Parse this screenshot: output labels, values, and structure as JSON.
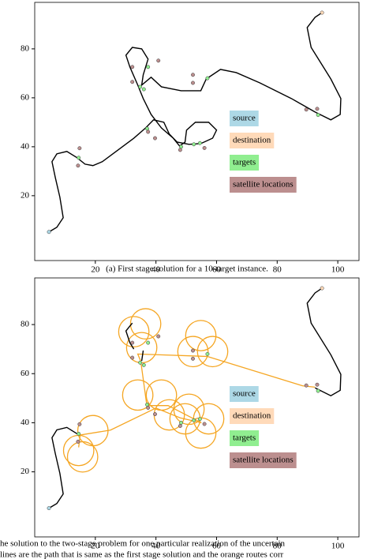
{
  "chart_data": [
    {
      "type": "route",
      "caption": "(a) First stage solution for a 10-target instance.",
      "xlim": [
        0,
        107
      ],
      "ylim": [
        -6.5,
        99
      ],
      "xticks": [
        20,
        40,
        60,
        80,
        100
      ],
      "yticks": [
        20,
        40,
        60,
        80
      ],
      "legend": "right",
      "path": {
        "color": "#000000",
        "x": [
          4.7,
          7.3,
          9.4,
          8.3,
          6.8,
          5.7,
          7.3,
          10.6,
          14.0,
          16.6,
          19.2,
          22.3,
          27.5,
          32.7,
          36.6,
          39.2,
          42.6,
          44.4,
          47.0,
          50.9,
          54.8,
          58.7,
          60.0,
          57.4,
          53.0,
          50.1,
          49.6,
          47.8,
          45.7,
          41.8,
          38.4,
          35.8,
          34.0,
          31.4,
          30.1,
          32.2,
          35.3,
          37.4,
          35.8,
          35.3,
          38.4,
          41.8,
          48.3,
          54.8,
          56.6,
          61.3,
          66.5,
          74.3,
          84.7,
          92.5,
          97.7,
          100.8,
          101.0,
          97.7,
          91.2,
          89.9,
          92.5,
          94.8
        ],
        "y": [
          5.2,
          7.1,
          11.0,
          19.4,
          27.4,
          33.9,
          37.1,
          38.1,
          35.5,
          32.9,
          32.3,
          33.9,
          38.7,
          43.5,
          47.7,
          51.0,
          50.0,
          45.2,
          41.9,
          41.0,
          41.3,
          43.5,
          46.8,
          50.0,
          50.0,
          46.8,
          41.9,
          40.3,
          43.5,
          47.7,
          53.2,
          59.7,
          65.2,
          72.6,
          77.4,
          80.6,
          80.0,
          75.8,
          69.4,
          65.2,
          68.4,
          64.5,
          62.9,
          62.9,
          67.7,
          71.6,
          70.3,
          66.1,
          59.7,
          54.2,
          51.0,
          53.2,
          59.7,
          67.7,
          80.6,
          88.7,
          92.9,
          94.8
        ]
      },
      "series": [
        {
          "name": "source",
          "color": "#add8e6",
          "x": [
            4.7
          ],
          "y": [
            5.2
          ]
        },
        {
          "name": "destination",
          "color": "#ffdab9",
          "x": [
            94.8
          ],
          "y": [
            94.8
          ]
        },
        {
          "name": "targets",
          "color": "#90ee90",
          "x": [
            14.5,
            37.1,
            34.8,
            37.4,
            48.3,
            52.5,
            57.0,
            93.5,
            54.5,
            36.0
          ],
          "y": [
            35.5,
            47.4,
            64.5,
            72.6,
            40.0,
            41.0,
            68.0,
            53.0,
            41.5,
            63.5
          ]
        },
        {
          "name": "satellite locations",
          "color": "#bc8f8f",
          "x": [
            14.8,
            14.3,
            32.2,
            32.2,
            40.8,
            52.2,
            52.2,
            37.4,
            39.7,
            48.0,
            56.0,
            89.6,
            93.2
          ],
          "y": [
            39.4,
            32.3,
            72.6,
            66.5,
            75.2,
            69.4,
            66.1,
            46.1,
            43.5,
            38.7,
            39.5,
            55.2,
            55.5
          ]
        }
      ]
    },
    {
      "type": "route",
      "caption": [
        "he solution to the two-stage problem for one particular realization of the uncertain",
        "lines are the path that is same as the first stage solution and the orange routes corr"
      ],
      "xlim": [
        0,
        107
      ],
      "ylim": [
        -6.5,
        99
      ],
      "xticks": [
        20,
        40,
        60,
        80,
        100
      ],
      "yticks": [
        20,
        40,
        60,
        80
      ],
      "legend": "right",
      "path": {
        "color": "#000000",
        "x": [
          4.7,
          7.3,
          9.4,
          8.3,
          6.8,
          5.7,
          7.3,
          10.6,
          14.0,
          null,
          32.7,
          31.4,
          30.1,
          32.2,
          null,
          35.8,
          35.3,
          null,
          92.5,
          97.7,
          100.8,
          101.0,
          97.7,
          91.2,
          89.9,
          92.5,
          94.8
        ],
        "y": [
          5.2,
          7.1,
          11.0,
          19.4,
          27.4,
          33.9,
          37.1,
          38.1,
          35.5,
          null,
          70.0,
          72.6,
          77.4,
          80.6,
          null,
          69.4,
          65.2,
          null,
          54.2,
          51.0,
          53.2,
          59.7,
          67.7,
          80.6,
          88.7,
          92.9,
          94.8
        ]
      },
      "orange_route": {
        "color": "#f5a623",
        "x": [
          14.5,
          15.0,
          25.0,
          40.0,
          48.0,
          55.0,
          44.0,
          37.0,
          35.0,
          34.0,
          57.0,
          88.5,
          92.5
        ],
        "y": [
          30.0,
          35.0,
          37.0,
          46.0,
          42.0,
          40.0,
          47.0,
          47.0,
          65.0,
          68.0,
          67.0,
          55.0,
          54.5
        ]
      },
      "orange_loops": {
        "color": "#f5a623",
        "x": [
          32.7,
          36.6,
          35.3,
          54.8,
          52.2,
          58.7,
          41.8,
          34.0,
          44.4,
          49.6,
          50.9,
          57.4,
          54.8,
          19.2,
          14.5,
          15.8
        ],
        "y": [
          77.1,
          80.3,
          70.6,
          75.5,
          69.0,
          69.0,
          51.3,
          51.3,
          43.2,
          41.6,
          45.5,
          41.6,
          35.8,
          36.8,
          28.7,
          26.1
        ],
        "r": [
          5,
          5,
          5,
          5,
          5,
          5,
          5,
          5,
          5,
          5,
          5,
          5,
          5,
          5,
          5,
          5
        ]
      },
      "series": [
        {
          "name": "source",
          "color": "#add8e6",
          "x": [
            4.7
          ],
          "y": [
            5.2
          ]
        },
        {
          "name": "destination",
          "color": "#ffdab9",
          "x": [
            94.8
          ],
          "y": [
            94.8
          ]
        },
        {
          "name": "targets",
          "color": "#90ee90",
          "x": [
            14.5,
            37.1,
            34.8,
            37.4,
            48.3,
            52.5,
            57.0,
            93.5,
            54.5,
            36.0
          ],
          "y": [
            35.5,
            47.4,
            64.5,
            72.6,
            40.0,
            41.0,
            68.0,
            53.0,
            41.5,
            63.5
          ]
        },
        {
          "name": "satellite locations",
          "color": "#bc8f8f",
          "x": [
            14.8,
            14.3,
            32.2,
            32.2,
            40.8,
            52.2,
            52.2,
            37.4,
            39.7,
            48.0,
            56.0,
            89.6,
            93.2
          ],
          "y": [
            39.4,
            32.3,
            72.6,
            66.5,
            75.2,
            69.4,
            66.1,
            46.1,
            43.5,
            38.7,
            39.5,
            55.2,
            55.5
          ]
        }
      ]
    }
  ]
}
